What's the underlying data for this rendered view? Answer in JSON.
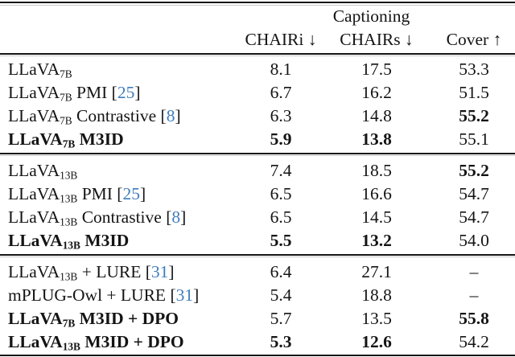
{
  "table": {
    "header": {
      "group_label": "Captioning",
      "columns": [
        "CHAIRi ↓",
        "CHAIRs ↓",
        "Cover ↑"
      ]
    },
    "cite_open": "[",
    "cite_close": "]",
    "missing_value": "–",
    "colors": {
      "text": "#141414",
      "citation": "#3e7dbe",
      "rule": "#161616"
    },
    "groups": [
      {
        "rows": [
          {
            "label": {
              "pre": "LLaVA",
              "sub": "7B",
              "post": "",
              "cite": ""
            },
            "bold_label": false,
            "values": [
              {
                "text": "8.1",
                "bold": false
              },
              {
                "text": "17.5",
                "bold": false
              },
              {
                "text": "53.3",
                "bold": false
              }
            ]
          },
          {
            "label": {
              "pre": "LLaVA",
              "sub": "7B",
              "post": " PMI",
              "cite": "25"
            },
            "bold_label": false,
            "values": [
              {
                "text": "6.7",
                "bold": false
              },
              {
                "text": "16.2",
                "bold": false
              },
              {
                "text": "51.5",
                "bold": false
              }
            ]
          },
          {
            "label": {
              "pre": "LLaVA",
              "sub": "7B",
              "post": " Contrastive",
              "cite": "8"
            },
            "bold_label": false,
            "values": [
              {
                "text": "6.3",
                "bold": false
              },
              {
                "text": "14.8",
                "bold": false
              },
              {
                "text": "55.2",
                "bold": true
              }
            ]
          },
          {
            "label": {
              "pre": "LLaVA",
              "sub": "7B",
              "post": " M3ID",
              "cite": ""
            },
            "bold_label": true,
            "values": [
              {
                "text": "5.9",
                "bold": true
              },
              {
                "text": "13.8",
                "bold": true
              },
              {
                "text": "55.1",
                "bold": false
              }
            ]
          }
        ]
      },
      {
        "rows": [
          {
            "label": {
              "pre": "LLaVA",
              "sub": "13B",
              "post": "",
              "cite": ""
            },
            "bold_label": false,
            "values": [
              {
                "text": "7.4",
                "bold": false
              },
              {
                "text": "18.5",
                "bold": false
              },
              {
                "text": "55.2",
                "bold": true
              }
            ]
          },
          {
            "label": {
              "pre": "LLaVA",
              "sub": "13B",
              "post": " PMI",
              "cite": "25"
            },
            "bold_label": false,
            "values": [
              {
                "text": "6.5",
                "bold": false
              },
              {
                "text": "16.6",
                "bold": false
              },
              {
                "text": "54.7",
                "bold": false
              }
            ]
          },
          {
            "label": {
              "pre": "LLaVA",
              "sub": "13B",
              "post": " Contrastive",
              "cite": "8"
            },
            "bold_label": false,
            "values": [
              {
                "text": "6.5",
                "bold": false
              },
              {
                "text": "14.5",
                "bold": false
              },
              {
                "text": "54.7",
                "bold": false
              }
            ]
          },
          {
            "label": {
              "pre": "LLaVA",
              "sub": "13B",
              "post": " M3ID",
              "cite": ""
            },
            "bold_label": true,
            "values": [
              {
                "text": "5.5",
                "bold": true
              },
              {
                "text": "13.2",
                "bold": true
              },
              {
                "text": "54.0",
                "bold": false
              }
            ]
          }
        ]
      },
      {
        "rows": [
          {
            "label": {
              "pre": "LLaVA",
              "sub": "13B",
              "post": " + LURE",
              "cite": "31"
            },
            "bold_label": false,
            "values": [
              {
                "text": "6.4",
                "bold": false
              },
              {
                "text": "27.1",
                "bold": false
              },
              {
                "text": "–",
                "bold": false
              }
            ]
          },
          {
            "label": {
              "pre": "mPLUG-Owl + LURE",
              "sub": "",
              "post": "",
              "cite": "31"
            },
            "bold_label": false,
            "values": [
              {
                "text": "5.4",
                "bold": false
              },
              {
                "text": "18.8",
                "bold": false
              },
              {
                "text": "–",
                "bold": false
              }
            ]
          },
          {
            "label": {
              "pre": "LLaVA",
              "sub": "7B",
              "post": " M3ID + DPO",
              "cite": ""
            },
            "bold_label": true,
            "values": [
              {
                "text": "5.7",
                "bold": false
              },
              {
                "text": "13.5",
                "bold": false
              },
              {
                "text": "55.8",
                "bold": true
              }
            ]
          },
          {
            "label": {
              "pre": "LLaVA",
              "sub": "13B",
              "post": " M3ID + DPO",
              "cite": ""
            },
            "bold_label": true,
            "values": [
              {
                "text": "5.3",
                "bold": true
              },
              {
                "text": "12.6",
                "bold": true
              },
              {
                "text": "54.2",
                "bold": false
              }
            ]
          }
        ]
      }
    ]
  }
}
